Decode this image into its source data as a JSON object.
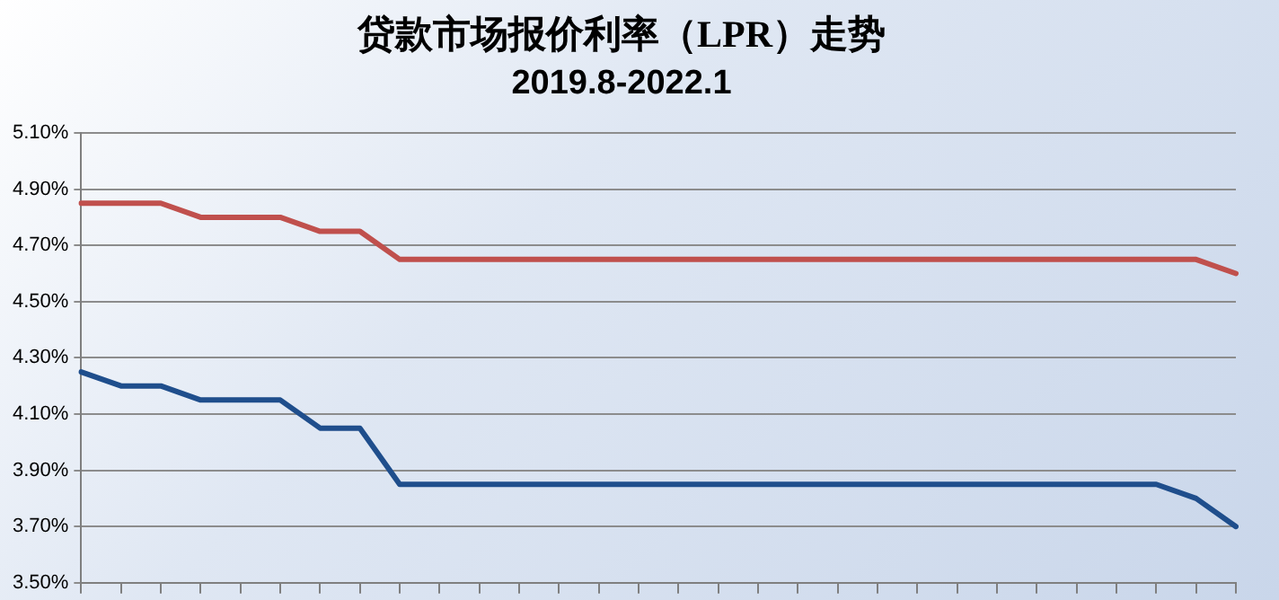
{
  "chart_data": {
    "type": "line",
    "title": "贷款市场报价利率（LPR）走势",
    "subtitle": "2019.8-2022.1",
    "categories": [
      null,
      null,
      null,
      null,
      null,
      null,
      null,
      null,
      null,
      null,
      null,
      null,
      null,
      null,
      null,
      null,
      null,
      null,
      null,
      null,
      null,
      null,
      null,
      null,
      null,
      null,
      null,
      null,
      null,
      null
    ],
    "series": [
      {
        "color": "#c0504d",
        "values": [
          4.85,
          4.85,
          4.85,
          4.8,
          4.8,
          4.8,
          4.75,
          4.75,
          4.65,
          4.65,
          4.65,
          4.65,
          4.65,
          4.65,
          4.65,
          4.65,
          4.65,
          4.65,
          4.65,
          4.65,
          4.65,
          4.65,
          4.65,
          4.65,
          4.65,
          4.65,
          4.65,
          4.65,
          4.65,
          4.6
        ]
      },
      {
        "color": "#1f4e8c",
        "values": [
          4.25,
          4.2,
          4.2,
          4.15,
          4.15,
          4.15,
          4.05,
          4.05,
          3.85,
          3.85,
          3.85,
          3.85,
          3.85,
          3.85,
          3.85,
          3.85,
          3.85,
          3.85,
          3.85,
          3.85,
          3.85,
          3.85,
          3.85,
          3.85,
          3.85,
          3.85,
          3.85,
          3.85,
          3.8,
          3.7
        ]
      }
    ],
    "ylim": [
      3.5,
      5.1
    ],
    "yticks": [
      {
        "value": 3.5,
        "label": "3.50%"
      },
      {
        "value": 3.7,
        "label": "3.70%"
      },
      {
        "value": 3.9,
        "label": "3.90%"
      },
      {
        "value": 4.1,
        "label": "4.10%"
      },
      {
        "value": 4.3,
        "label": "4.30%"
      },
      {
        "value": 4.5,
        "label": "4.50%"
      },
      {
        "value": 4.7,
        "label": "4.70%"
      },
      {
        "value": 4.9,
        "label": "4.90%"
      },
      {
        "value": 5.1,
        "label": "5.10%"
      }
    ],
    "grid": "y",
    "legend": false,
    "marker": "none",
    "line_style": "solid",
    "tick_labels": "y"
  }
}
